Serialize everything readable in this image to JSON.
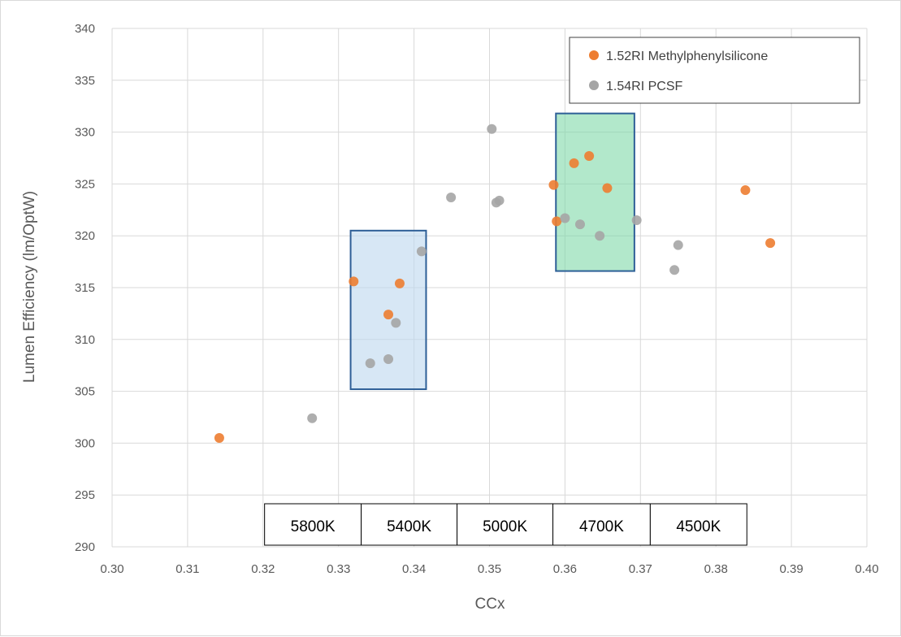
{
  "chart_data": {
    "type": "scatter",
    "title": "",
    "xlabel": "CCx",
    "ylabel": "Lumen Efficiency (lm/OptW)",
    "xlim": [
      0.3,
      0.4
    ],
    "ylim": [
      290,
      340
    ],
    "x_ticks": [
      "0.30",
      "0.31",
      "0.32",
      "0.33",
      "0.34",
      "0.35",
      "0.36",
      "0.37",
      "0.38",
      "0.39",
      "0.40"
    ],
    "y_ticks": [
      "290",
      "295",
      "300",
      "305",
      "310",
      "315",
      "320",
      "325",
      "330",
      "335",
      "340"
    ],
    "grid": true,
    "legend_position": "top-right",
    "series": [
      {
        "name": "1.52RI Methylphenylsilicone",
        "color": "#ed7d31",
        "points": [
          {
            "x": 0.3142,
            "y": 300.5
          },
          {
            "x": 0.332,
            "y": 315.6
          },
          {
            "x": 0.3366,
            "y": 312.4
          },
          {
            "x": 0.3381,
            "y": 315.4
          },
          {
            "x": 0.3585,
            "y": 324.9
          },
          {
            "x": 0.3589,
            "y": 321.4
          },
          {
            "x": 0.3612,
            "y": 327.0
          },
          {
            "x": 0.3632,
            "y": 327.7
          },
          {
            "x": 0.3656,
            "y": 324.6
          },
          {
            "x": 0.3839,
            "y": 324.4
          },
          {
            "x": 0.3872,
            "y": 319.3
          }
        ]
      },
      {
        "name": "1.54RI PCSF",
        "color": "#a5a5a5",
        "points": [
          {
            "x": 0.3265,
            "y": 302.4
          },
          {
            "x": 0.3342,
            "y": 307.7
          },
          {
            "x": 0.3366,
            "y": 308.1
          },
          {
            "x": 0.3376,
            "y": 311.6
          },
          {
            "x": 0.341,
            "y": 318.5
          },
          {
            "x": 0.3449,
            "y": 323.7
          },
          {
            "x": 0.3503,
            "y": 330.3
          },
          {
            "x": 0.3509,
            "y": 323.2
          },
          {
            "x": 0.3513,
            "y": 323.4
          },
          {
            "x": 0.36,
            "y": 321.7
          },
          {
            "x": 0.362,
            "y": 321.1
          },
          {
            "x": 0.3646,
            "y": 320.0
          },
          {
            "x": 0.3695,
            "y": 321.5
          },
          {
            "x": 0.3745,
            "y": 316.7
          },
          {
            "x": 0.375,
            "y": 319.1
          }
        ]
      }
    ],
    "regions": [
      {
        "name": "5400K-region",
        "x0": 0.3316,
        "x1": 0.3416,
        "y0": 305.2,
        "y1": 320.5,
        "fill": "#bdd7ee",
        "stroke": "#2e5f97"
      },
      {
        "name": "4700K-region",
        "x0": 0.3588,
        "x1": 0.3692,
        "y0": 316.6,
        "y1": 331.8,
        "fill": "#7fd8a8",
        "stroke": "#2e5f97"
      }
    ],
    "cct_table": [
      {
        "label": "5800K",
        "x0": 0.3202,
        "x1": 0.333
      },
      {
        "label": "5400K",
        "x0": 0.333,
        "x1": 0.3457
      },
      {
        "label": "5000K",
        "x0": 0.3457,
        "x1": 0.3584
      },
      {
        "label": "4700K",
        "x0": 0.3584,
        "x1": 0.3713
      },
      {
        "label": "4500K",
        "x0": 0.3713,
        "x1": 0.3841
      }
    ]
  }
}
